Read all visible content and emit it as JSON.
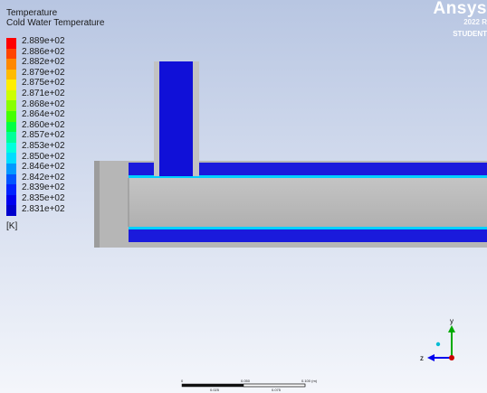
{
  "legend": {
    "title": "Temperature",
    "subtitle": "Cold Water Temperature",
    "unit": "[K]",
    "ticks": [
      "2.889e+02",
      "2.886e+02",
      "2.882e+02",
      "2.879e+02",
      "2.875e+02",
      "2.871e+02",
      "2.868e+02",
      "2.864e+02",
      "2.860e+02",
      "2.857e+02",
      "2.853e+02",
      "2.850e+02",
      "2.846e+02",
      "2.842e+02",
      "2.839e+02",
      "2.835e+02",
      "2.831e+02"
    ],
    "colors": [
      "#ff0000",
      "#ff4400",
      "#ff8800",
      "#ffbb00",
      "#ffee00",
      "#ccff00",
      "#88ff00",
      "#44ff00",
      "#00ff44",
      "#00ff99",
      "#00ffdd",
      "#00ddff",
      "#0099ff",
      "#0055ff",
      "#0022ff",
      "#0000ee",
      "#0000cc"
    ]
  },
  "branding": {
    "name": "Ansys",
    "version": "2022 R",
    "edition": "STUDENT"
  },
  "scale": {
    "labels": [
      "0",
      "0.050",
      "0.100 (m)",
      "0.025",
      "0.075"
    ]
  },
  "axes": {
    "y": "y",
    "z": "z"
  }
}
